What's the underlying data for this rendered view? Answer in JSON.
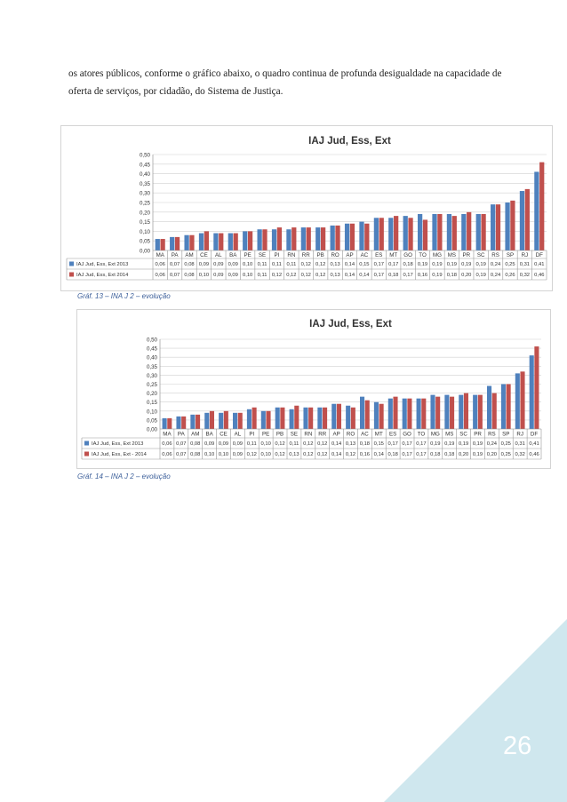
{
  "paragraph": "os atores públicos, conforme o gráfico abaixo, o quadro continua de profunda desigualdade na capacidade de oferta de serviços, por cidadão, do Sistema de Justiça.",
  "page_number": "26",
  "chart_data": [
    {
      "type": "bar",
      "title": "IAJ Jud, Ess, Ext",
      "caption": "Gráf. 13 – INA J 2 – evolução",
      "ylim": [
        0,
        0.5
      ],
      "yticks": [
        "0,00",
        "0,05",
        "0,10",
        "0,15",
        "0,20",
        "0,25",
        "0,30",
        "0,35",
        "0,40",
        "0,45",
        "0,50"
      ],
      "categories": [
        "MA",
        "PA",
        "AM",
        "CE",
        "AL",
        "BA",
        "PE",
        "SE",
        "PI",
        "RN",
        "RR",
        "PB",
        "RO",
        "AP",
        "AC",
        "ES",
        "MT",
        "GO",
        "TO",
        "MG",
        "MS",
        "PR",
        "SC",
        "RS",
        "SP",
        "RJ",
        "DF"
      ],
      "grid": true,
      "legend": "data-table-left",
      "colors": [
        "#4f81bd",
        "#c0504d"
      ],
      "series": [
        {
          "name": "IAJ Jud, Ess, Ext 2013",
          "labels": [
            "0,06",
            "0,07",
            "0,08",
            "0,09",
            "0,09",
            "0,09",
            "0,10",
            "0,11",
            "0,11",
            "0,11",
            "0,12",
            "0,12",
            "0,13",
            "0,14",
            "0,15",
            "0,17",
            "0,17",
            "0,18",
            "0,19",
            "0,19",
            "0,19",
            "0,19",
            "0,19",
            "0,24",
            "0,25",
            "0,31",
            "0,41"
          ],
          "values": [
            0.06,
            0.07,
            0.08,
            0.09,
            0.09,
            0.09,
            0.1,
            0.11,
            0.11,
            0.11,
            0.12,
            0.12,
            0.13,
            0.14,
            0.15,
            0.17,
            0.17,
            0.18,
            0.19,
            0.19,
            0.19,
            0.19,
            0.19,
            0.24,
            0.25,
            0.31,
            0.41
          ]
        },
        {
          "name": "IAJ Jud, Ess, Ext     2014",
          "labels": [
            "0,06",
            "0,07",
            "0,08",
            "0,10",
            "0,09",
            "0,09",
            "0,10",
            "0,11",
            "0,12",
            "0,12",
            "0,12",
            "0,12",
            "0,13",
            "0,14",
            "0,14",
            "0,17",
            "0,18",
            "0,17",
            "0,16",
            "0,19",
            "0,18",
            "0,20",
            "0,19",
            "0,24",
            "0,26",
            "0,32",
            "0,46"
          ],
          "values": [
            0.06,
            0.07,
            0.08,
            0.1,
            0.09,
            0.09,
            0.1,
            0.11,
            0.12,
            0.12,
            0.12,
            0.12,
            0.13,
            0.14,
            0.14,
            0.17,
            0.18,
            0.17,
            0.16,
            0.19,
            0.18,
            0.2,
            0.19,
            0.24,
            0.26,
            0.32,
            0.46
          ]
        }
      ]
    },
    {
      "type": "bar",
      "title": "IAJ Jud, Ess, Ext",
      "caption": "Gráf. 14 – INA J 2 – evolução",
      "ylim": [
        0,
        0.5
      ],
      "yticks": [
        "0,00",
        "0,05",
        "0,10",
        "0,15",
        "0,20",
        "0,25",
        "0,30",
        "0,35",
        "0,40",
        "0,45",
        "0,50"
      ],
      "categories": [
        "MA",
        "PA",
        "AM",
        "BA",
        "CE",
        "AL",
        "PI",
        "PE",
        "PB",
        "SE",
        "RN",
        "RR",
        "AP",
        "RO",
        "AC",
        "MT",
        "ES",
        "GO",
        "TO",
        "MG",
        "MS",
        "SC",
        "PR",
        "RS",
        "SP",
        "RJ",
        "DF"
      ],
      "grid": true,
      "legend": "data-table-left",
      "colors": [
        "#4f81bd",
        "#c0504d"
      ],
      "series": [
        {
          "name": "IAJ Jud, Ess, Ext 2013",
          "labels": [
            "0,06",
            "0,07",
            "0,08",
            "0,09",
            "0,09",
            "0,09",
            "0,11",
            "0,10",
            "0,12",
            "0,11",
            "0,12",
            "0,12",
            "0,14",
            "0,13",
            "0,18",
            "0,15",
            "0,17",
            "0,17",
            "0,17",
            "0,19",
            "0,19",
            "0,19",
            "0,19",
            "0,24",
            "0,25",
            "0,31",
            "0,41"
          ],
          "values": [
            0.06,
            0.07,
            0.08,
            0.09,
            0.09,
            0.09,
            0.11,
            0.1,
            0.12,
            0.11,
            0.12,
            0.12,
            0.14,
            0.13,
            0.18,
            0.15,
            0.17,
            0.17,
            0.17,
            0.19,
            0.19,
            0.19,
            0.19,
            0.24,
            0.25,
            0.31,
            0.41
          ]
        },
        {
          "name": "IAJ Jud, Ess, Ext - 2014",
          "labels": [
            "0,06",
            "0,07",
            "0,08",
            "0,10",
            "0,10",
            "0,09",
            "0,12",
            "0,10",
            "0,12",
            "0,13",
            "0,12",
            "0,12",
            "0,14",
            "0,12",
            "0,16",
            "0,14",
            "0,18",
            "0,17",
            "0,17",
            "0,18",
            "0,18",
            "0,20",
            "0,19",
            "0,20",
            "0,25",
            "0,32",
            "0,46"
          ],
          "values": [
            0.06,
            0.07,
            0.08,
            0.1,
            0.1,
            0.09,
            0.12,
            0.1,
            0.12,
            0.13,
            0.12,
            0.12,
            0.14,
            0.12,
            0.16,
            0.14,
            0.18,
            0.17,
            0.17,
            0.18,
            0.18,
            0.2,
            0.19,
            0.2,
            0.25,
            0.32,
            0.46
          ]
        }
      ]
    }
  ]
}
